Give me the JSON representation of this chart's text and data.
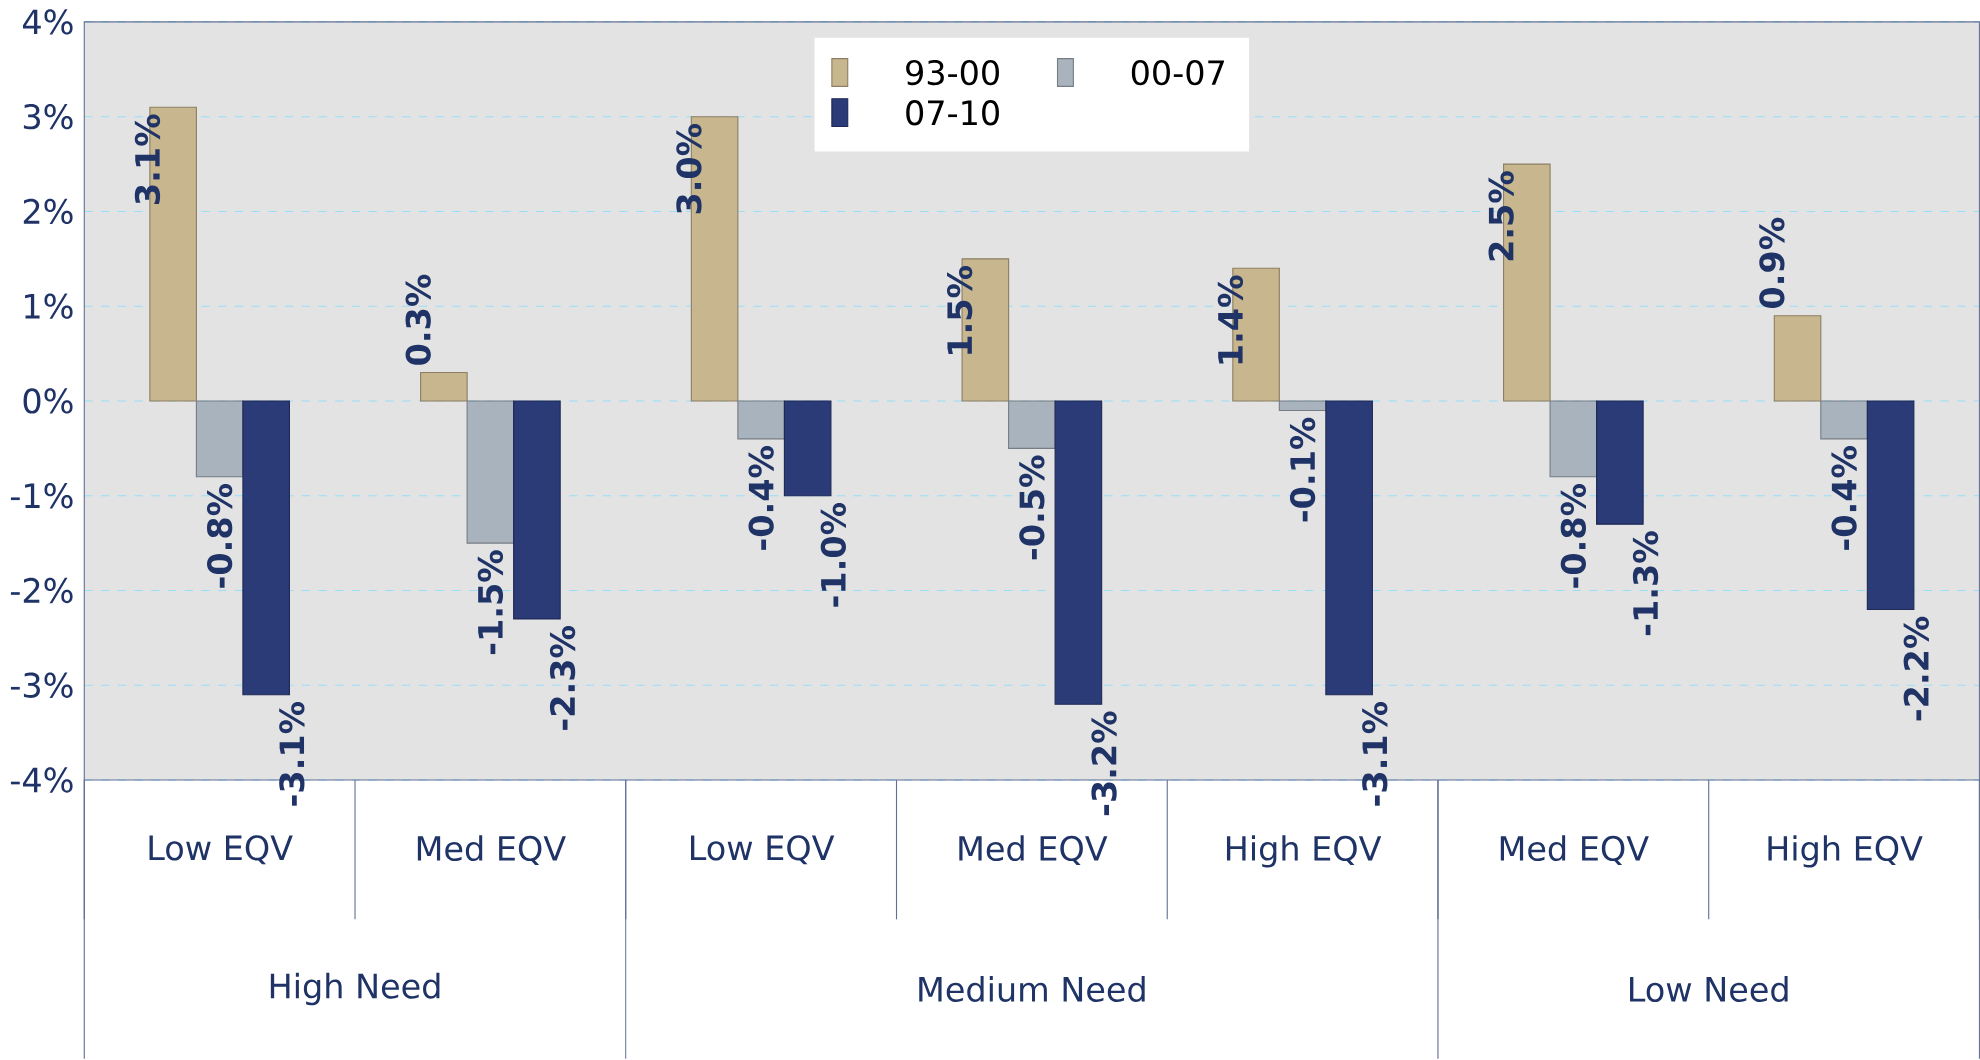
{
  "chart_data": {
    "type": "bar",
    "categories": [
      "Low EQV",
      "Med EQV",
      "Low EQV",
      "Med EQV",
      "High EQV",
      "Med EQV",
      "High EQV"
    ],
    "series": [
      {
        "name": "93-00",
        "color": "#c8b68e",
        "values": [
          3.1,
          0.3,
          3.0,
          1.5,
          1.4,
          2.5,
          0.9
        ],
        "value_labels": [
          "3.1%",
          "0.3%",
          "3.0%",
          "1.5%",
          "1.4%",
          "2.5%",
          "0.9%"
        ]
      },
      {
        "name": "00-07",
        "color": "#a9b3bd",
        "values": [
          -0.8,
          -1.5,
          -0.4,
          -0.5,
          -0.1,
          -0.8,
          -0.4
        ],
        "value_labels": [
          "-0.8%",
          "-1.5%",
          "-0.4%",
          "-0.5%",
          "-0.1%",
          "-0.8%",
          "-0.4%"
        ]
      },
      {
        "name": "07-10",
        "color": "#2b3b78",
        "values": [
          -3.1,
          -2.3,
          -1.0,
          -3.2,
          -3.1,
          -1.3,
          -2.2
        ],
        "value_labels": [
          "-3.1%",
          "-2.3%",
          "-1.0%",
          "-3.2%",
          "-3.1%",
          "-1.3%",
          "-2.2%"
        ]
      }
    ],
    "ylim": [
      -4,
      4
    ],
    "yticks": [
      {
        "value": -4,
        "label": "-4%"
      },
      {
        "value": -3,
        "label": "-3%"
      },
      {
        "value": -2,
        "label": "-2%"
      },
      {
        "value": -1,
        "label": "-1%"
      },
      {
        "value": 0,
        "label": "0%"
      },
      {
        "value": 1,
        "label": "1%"
      },
      {
        "value": 2,
        "label": "2%"
      },
      {
        "value": 3,
        "label": "3%"
      },
      {
        "value": 4,
        "label": "4%"
      }
    ],
    "grid": "y",
    "legend": "top",
    "annotations": [
      "High Need",
      "Medium Need",
      "Low Need"
    ]
  }
}
